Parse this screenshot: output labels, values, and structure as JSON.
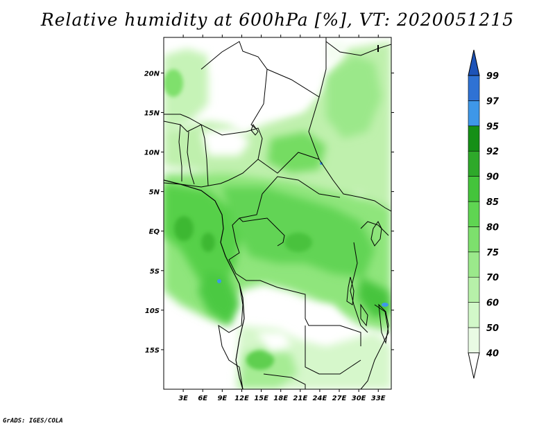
{
  "title": "Relative humidity at 600hPa [%], VT: 2020051215",
  "footer": "GrADS: IGES/COLA",
  "map": {
    "lat_labels": [
      "20N",
      "15N",
      "10N",
      "5N",
      "EQ",
      "5S",
      "10S",
      "15S"
    ],
    "lon_labels": [
      "3E",
      "6E",
      "9E",
      "12E",
      "15E",
      "18E",
      "21E",
      "24E",
      "27E",
      "30E",
      "33E"
    ],
    "lon_range": [
      0,
      35
    ],
    "lat_range": [
      -20,
      24.5
    ]
  },
  "colorbar": {
    "levels": [
      "40",
      "50",
      "60",
      "70",
      "75",
      "80",
      "85",
      "90",
      "92",
      "95",
      "97",
      "99"
    ],
    "colors": [
      "#ffffff",
      "#e9fbe4",
      "#d2f8c9",
      "#b7f1a9",
      "#9be98b",
      "#7de06d",
      "#5fd552",
      "#44c43b",
      "#2ea92a",
      "#158f16",
      "#3e97e8",
      "#2f72d4",
      "#1d53b8"
    ]
  }
}
